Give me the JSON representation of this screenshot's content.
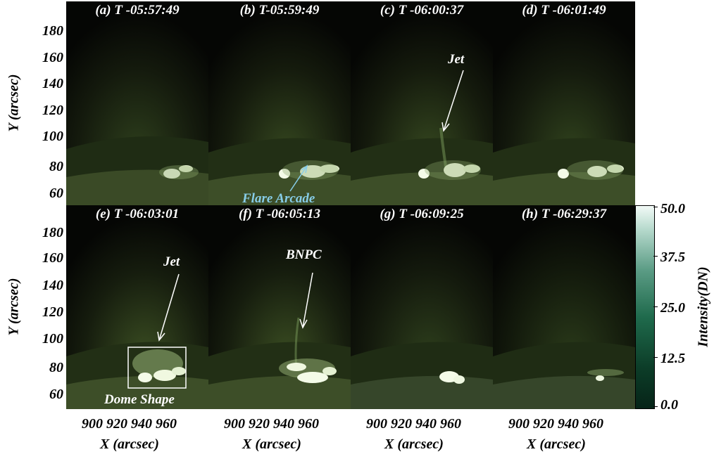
{
  "panels": [
    {
      "title": "(a) T -05:57:49"
    },
    {
      "title": "(b) T-05:59:49"
    },
    {
      "title": "(c) T -06:00:37"
    },
    {
      "title": "(d) T -06:01:49"
    },
    {
      "title": "(e) T -06:03:01"
    },
    {
      "title": "(f) T -06:05:13"
    },
    {
      "title": "(g) T -06:09:25"
    },
    {
      "title": "(h) T -06:29:37"
    }
  ],
  "annotations": {
    "jet_c": "Jet",
    "flare_arcade": "Flare Arcade",
    "jet_e": "Jet",
    "dome_shape": "Dome Shape",
    "bnpc": "BNPC"
  },
  "axes": {
    "ylabel": "Y (arcsec)",
    "xlabel": "X (arcsec)",
    "yticks": [
      "180",
      "160",
      "140",
      "120",
      "100",
      "80",
      "60"
    ],
    "xticks": "900 920 940 960"
  },
  "colorbar": {
    "label": "Intensity(DN)",
    "ticks": [
      "50.0",
      "37.5",
      "25.0",
      "12.5",
      "0.0"
    ],
    "colors": {
      "low": "#062418",
      "high": "#f2faf7"
    }
  },
  "colors": {
    "annotation_cyan": "#87cde8",
    "box": "#ffffff"
  }
}
